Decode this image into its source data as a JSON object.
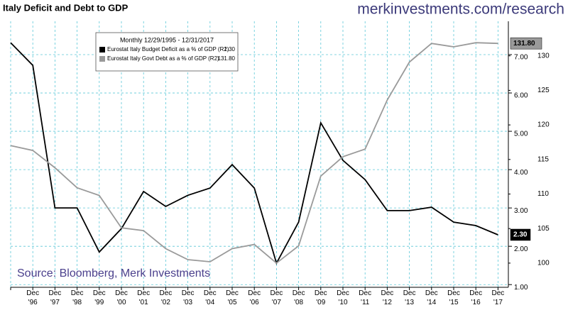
{
  "chart_data": {
    "type": "line",
    "title": "Italy Deficit and Debt to GDP",
    "header_note": "merkinvestments.com/research",
    "source": "Source: Bloomberg, Merk Investments",
    "legend_title": "Monthly 12/29/1995 - 12/31/2017",
    "categories": [
      null,
      "Dec '96",
      "Dec '97",
      "Dec '98",
      "Dec '99",
      "Dec '00",
      "Dec '01",
      "Dec '02",
      "Dec '03",
      "Dec '04",
      "Dec '05",
      "Dec '06",
      "Dec '07",
      "Dec '08",
      "Dec '09",
      "Dec '10",
      "Dec '11",
      "Dec '12",
      "Dec '13",
      "Dec '14",
      "Dec '15",
      "Dec '16",
      "Dec '17"
    ],
    "series": [
      {
        "name": "Eurostat Italy Budget Deficit as a % of GDP (R1)",
        "color": "#000000",
        "last_label": "2.30",
        "values": [
          7.31,
          6.72,
          3.0,
          3.0,
          1.85,
          2.46,
          3.43,
          3.04,
          3.33,
          3.52,
          4.13,
          3.52,
          1.56,
          2.63,
          5.22,
          4.24,
          3.74,
          2.93,
          2.93,
          3.02,
          2.63,
          2.54,
          2.3
        ]
      },
      {
        "name": "Eurostat Italy Govt Debt as a % of GDP (R2)",
        "color": "#9a9a9a",
        "axis": "y2",
        "last_label": "131.80",
        "values": [
          117.0,
          116.3,
          113.8,
          110.9,
          109.8,
          105.1,
          104.7,
          102.1,
          100.5,
          100.2,
          102.1,
          102.7,
          100.0,
          102.5,
          112.6,
          115.4,
          116.5,
          123.6,
          129.1,
          131.8,
          131.3,
          131.9,
          131.8
        ]
      }
    ],
    "ylim": [
      0.93,
      7.87
    ],
    "yticks": [
      {
        "value": 1,
        "label": "1.00"
      },
      {
        "value": 2,
        "label": "2.00"
      },
      {
        "value": 3,
        "label": "3.00"
      },
      {
        "value": 4,
        "label": "4.00"
      },
      {
        "value": 5,
        "label": "5.00"
      },
      {
        "value": 6,
        "label": "6.00"
      },
      {
        "value": 7,
        "label": "7.00"
      }
    ],
    "y2lim": [
      96.5,
      135
    ],
    "y2ticks": [
      100,
      105,
      110,
      115,
      120,
      125,
      130
    ],
    "grid": true
  }
}
